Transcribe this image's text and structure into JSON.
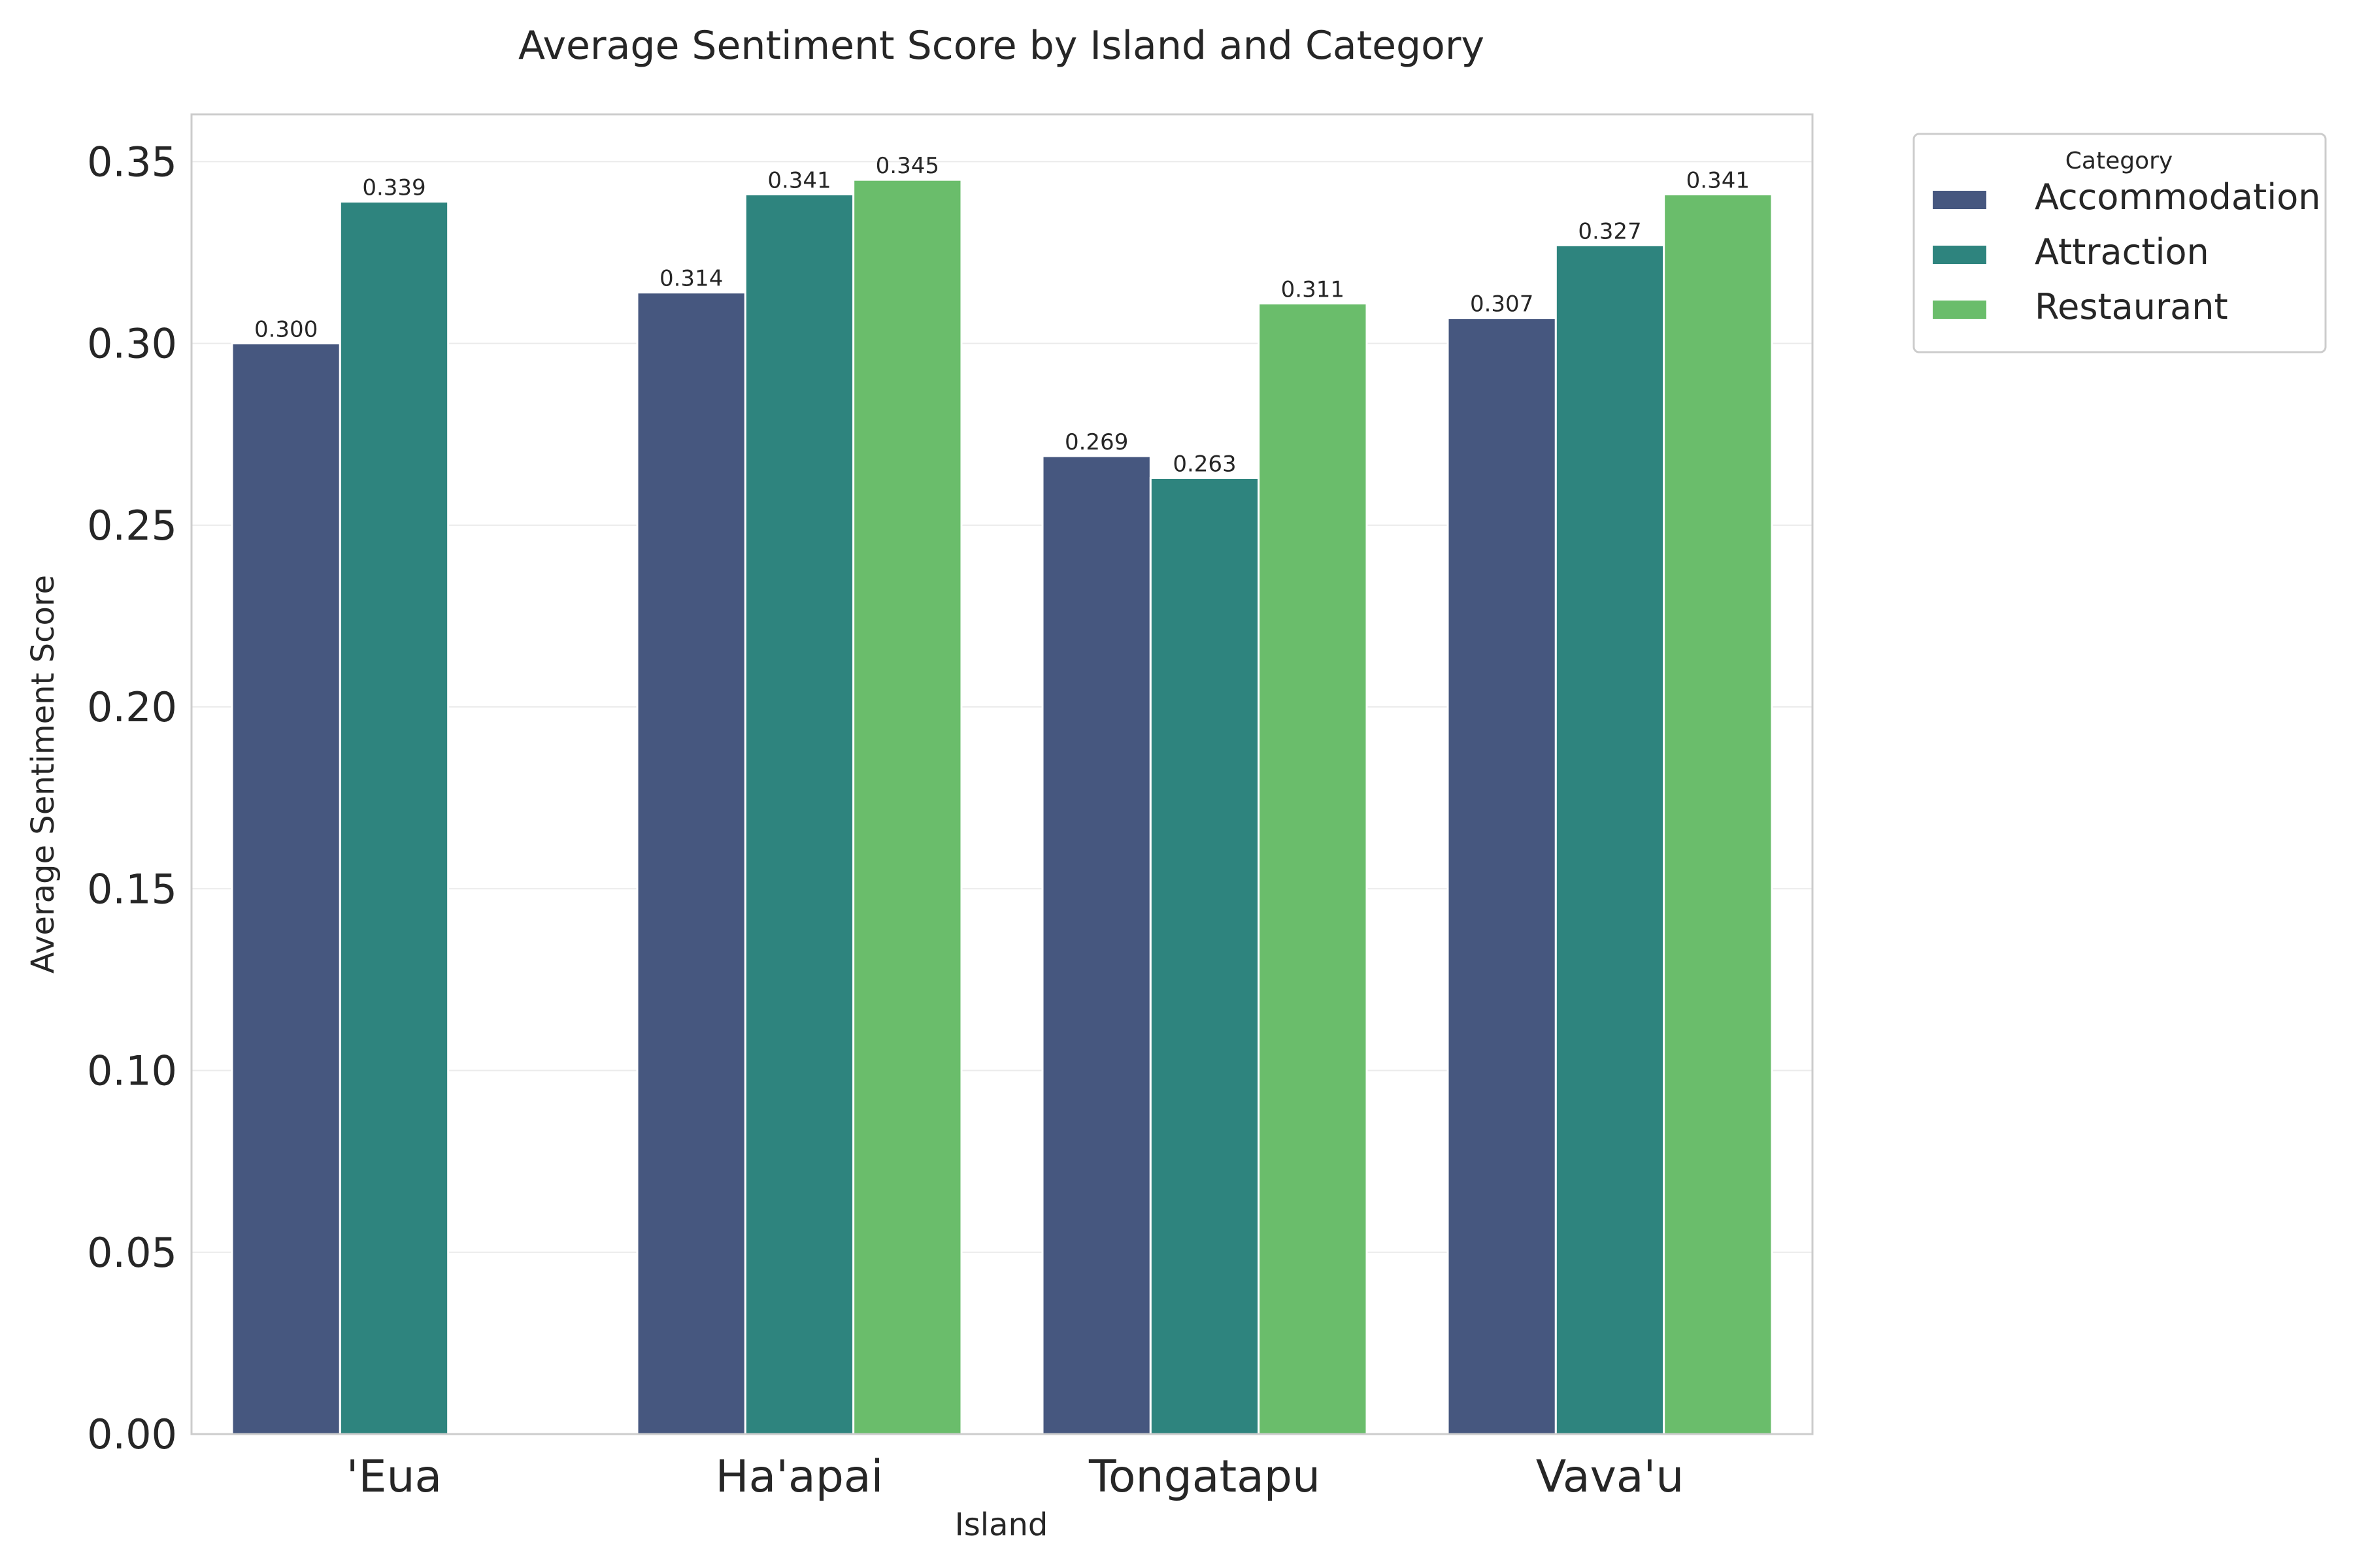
{
  "chart_data": {
    "type": "bar",
    "title": "Average Sentiment Score by Island and Category",
    "xlabel": "Island",
    "ylabel": "Average Sentiment Score",
    "categories": [
      "'Eua",
      "Ha'apai",
      "Tongatapu",
      "Vava'u"
    ],
    "series": [
      {
        "name": "Accommodation",
        "color": "#46577f",
        "values": [
          0.3,
          0.314,
          0.269,
          0.307
        ],
        "labels": [
          "0.300",
          "0.314",
          "0.269",
          "0.307"
        ]
      },
      {
        "name": "Attraction",
        "color": "#2e847e",
        "values": [
          0.339,
          0.341,
          0.263,
          0.327
        ],
        "labels": [
          "0.339",
          "0.341",
          "0.263",
          "0.327"
        ]
      },
      {
        "name": "Restaurant",
        "color": "#6abd6b",
        "values": [
          null,
          0.345,
          0.311,
          0.341
        ],
        "labels": [
          "",
          "0.345",
          "0.311",
          "0.341"
        ]
      }
    ],
    "ylim": [
      0,
      0.363
    ],
    "yticks": [
      "0.00",
      "0.05",
      "0.10",
      "0.15",
      "0.20",
      "0.25",
      "0.30",
      "0.35"
    ],
    "grid": true,
    "legend": {
      "title": "Category",
      "placement": "outside-top-right"
    }
  }
}
